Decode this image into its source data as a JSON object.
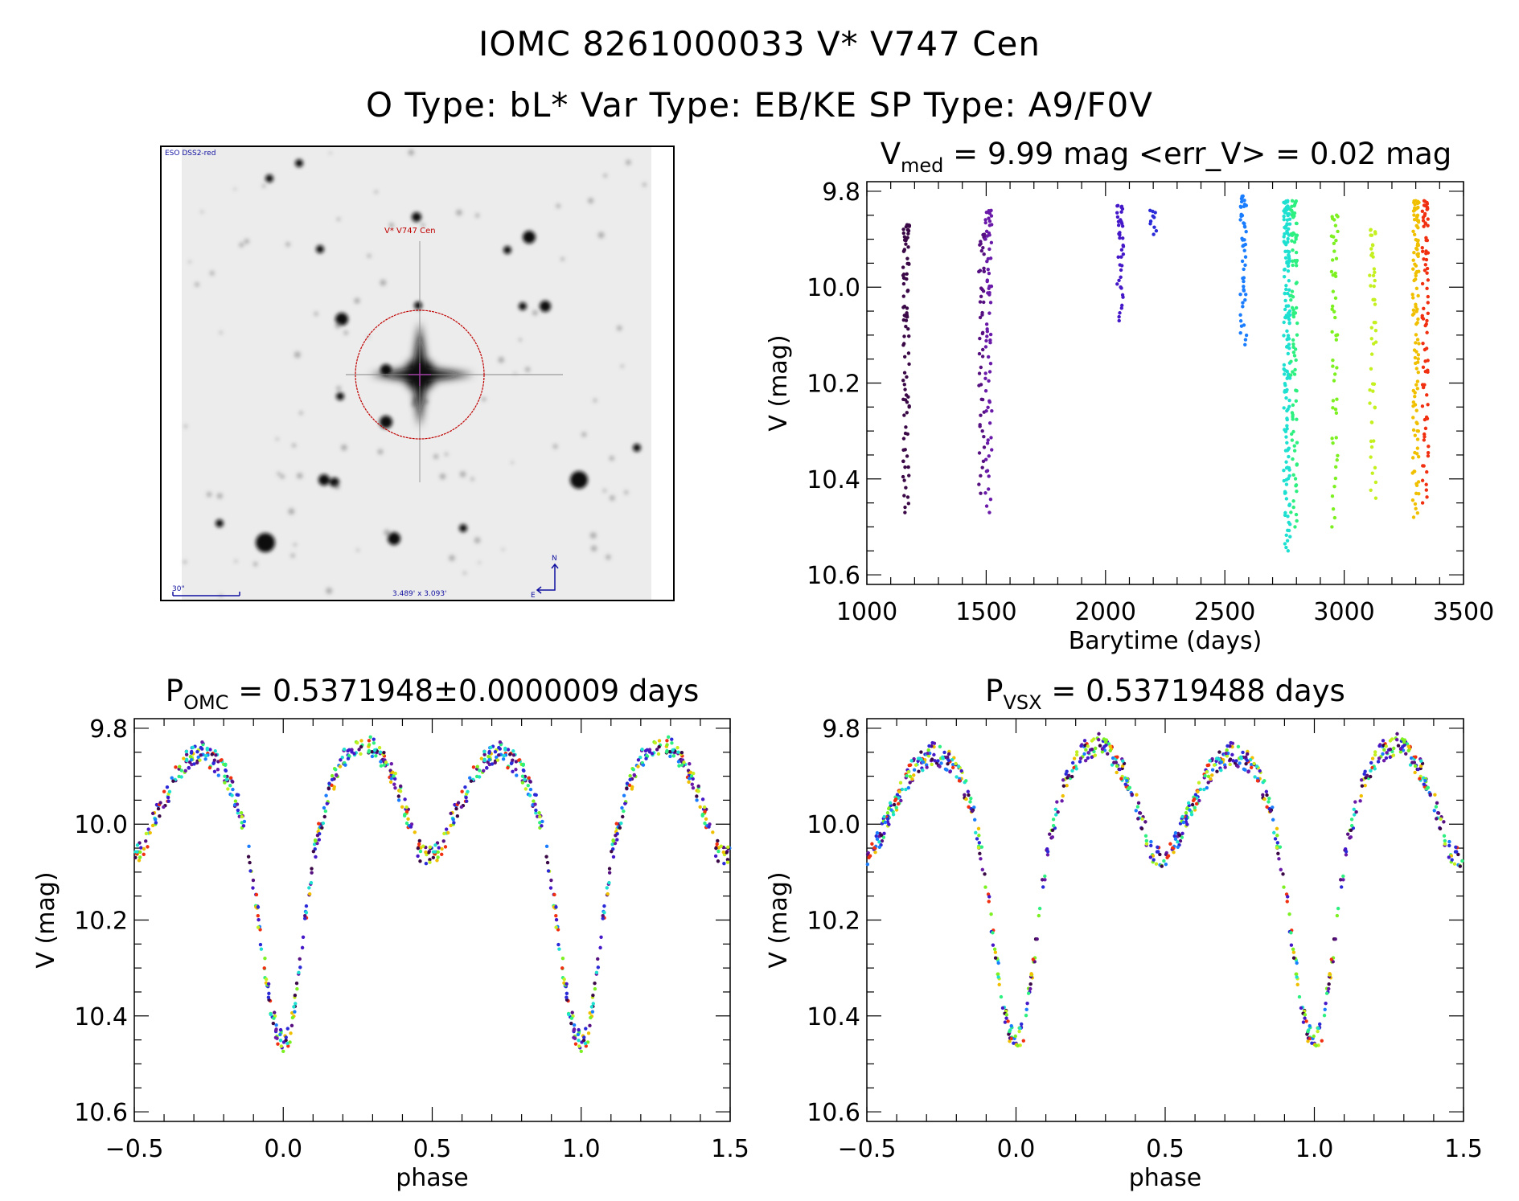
{
  "header": {
    "title_line1": "IOMC 8261000033   V* V747 Cen",
    "title_line2": "O Type: bL*  Var Type: EB/KE  SP Type: A9/F0V"
  },
  "finder_image": {
    "survey_label": "ESO DSS2-red",
    "target_label": "V* V747 Cen",
    "scale_label": "30\"",
    "fov_label": "3.489' x 3.093'",
    "north_label": "N",
    "east_label": "E",
    "label_color": "#1010a0",
    "target_color": "#c00000"
  },
  "chart_data": [
    {
      "type": "scatter",
      "title_main": "V",
      "title_sub": "med",
      "title_rest": " = 9.99 mag <err_V> = 0.02 mag",
      "xlabel": "Barytime (days)",
      "ylabel": "V (mag)",
      "xlim": [
        1000,
        3500
      ],
      "ylim": [
        10.62,
        9.78
      ],
      "xticks": [
        "1000",
        "1500",
        "2000",
        "2500",
        "3000",
        "3500"
      ],
      "yticks": [
        "9.8",
        "10.0",
        "10.2",
        "10.4",
        "10.6"
      ],
      "seasons": [
        {
          "t": 1165,
          "min": 9.87,
          "max": 10.47,
          "n": 90,
          "color": "#3a0846"
        },
        {
          "t": 1482,
          "min": 9.89,
          "max": 10.43,
          "n": 50,
          "color": "#560f80"
        },
        {
          "t": 1510,
          "min": 9.84,
          "max": 10.47,
          "n": 70,
          "color": "#6a1aa8"
        },
        {
          "t": 2062,
          "min": 9.83,
          "max": 10.07,
          "n": 40,
          "color": "#4418c8"
        },
        {
          "t": 2200,
          "min": 9.84,
          "max": 9.89,
          "n": 10,
          "color": "#2a2ad8"
        },
        {
          "t": 2578,
          "min": 9.81,
          "max": 10.12,
          "n": 50,
          "color": "#1a7cff"
        },
        {
          "t": 2760,
          "min": 9.82,
          "max": 10.55,
          "n": 160,
          "color": "#1ee0d0"
        },
        {
          "t": 2790,
          "min": 9.82,
          "max": 10.5,
          "n": 90,
          "color": "#2ef080"
        },
        {
          "t": 2960,
          "min": 9.85,
          "max": 10.5,
          "n": 50,
          "color": "#7cf020"
        },
        {
          "t": 3120,
          "min": 9.88,
          "max": 10.44,
          "n": 50,
          "color": "#c4f020"
        },
        {
          "t": 3300,
          "min": 9.82,
          "max": 10.48,
          "n": 110,
          "color": "#f0c000"
        },
        {
          "t": 3340,
          "min": 9.82,
          "max": 10.45,
          "n": 80,
          "color": "#f03010"
        }
      ]
    },
    {
      "type": "scatter",
      "title_main": "P",
      "title_sub": "OMC",
      "title_rest": " = 0.5371948±0.0000009 days",
      "xlabel": "phase",
      "ylabel": "V (mag)",
      "xlim": [
        -0.5,
        1.5
      ],
      "ylim": [
        10.62,
        9.78
      ],
      "xticks": [
        "−0.5",
        "0.0",
        "0.5",
        "1.0",
        "1.5"
      ],
      "yticks": [
        "9.8",
        "10.0",
        "10.2",
        "10.4",
        "10.6"
      ]
    },
    {
      "type": "scatter",
      "title_main": "P",
      "title_sub": "VSX",
      "title_rest": " = 0.53719488 days",
      "xlabel": "phase",
      "ylabel": "V (mag)",
      "xlim": [
        -0.5,
        1.5
      ],
      "ylim": [
        10.62,
        9.78
      ],
      "xticks": [
        "−0.5",
        "0.0",
        "0.5",
        "1.0",
        "1.5"
      ],
      "yticks": [
        "9.8",
        "10.0",
        "10.2",
        "10.4",
        "10.6"
      ]
    }
  ],
  "folded_curve": {
    "phase": [
      0.0,
      0.025,
      0.05,
      0.075,
      0.1,
      0.125,
      0.15,
      0.175,
      0.2,
      0.225,
      0.25,
      0.275,
      0.3,
      0.325,
      0.35,
      0.375,
      0.4,
      0.425,
      0.45,
      0.475,
      0.5,
      0.525,
      0.55,
      0.575,
      0.6,
      0.625,
      0.65,
      0.675,
      0.7,
      0.725,
      0.75,
      0.775,
      0.8,
      0.825,
      0.85,
      0.875,
      0.9,
      0.925,
      0.95,
      0.975
    ],
    "mag": [
      10.46,
      10.43,
      10.33,
      10.2,
      10.08,
      10.0,
      9.94,
      9.9,
      9.87,
      9.85,
      9.84,
      9.83,
      9.84,
      9.86,
      9.88,
      9.91,
      9.95,
      10.0,
      10.05,
      10.07,
      10.07,
      10.05,
      10.02,
      9.98,
      9.95,
      9.92,
      9.89,
      9.87,
      9.86,
      9.85,
      9.86,
      9.87,
      9.89,
      9.92,
      9.96,
      10.03,
      10.12,
      10.24,
      10.35,
      10.43
    ]
  }
}
